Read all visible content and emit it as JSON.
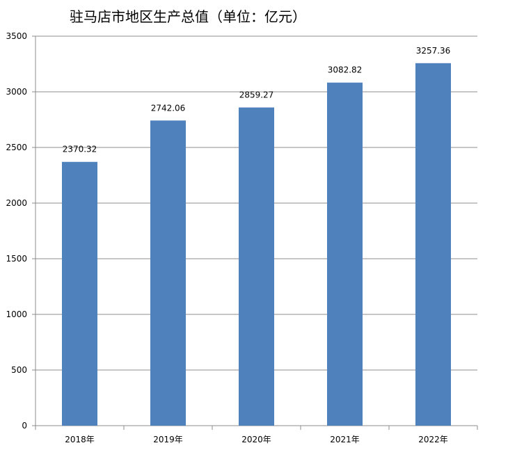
{
  "chart_data": {
    "type": "bar",
    "title": "驻马店市地区生产总值（单位：亿元）",
    "categories": [
      "2018年",
      "2019年",
      "2020年",
      "2021年",
      "2022年"
    ],
    "values": [
      2370.32,
      2742.06,
      2859.27,
      3082.82,
      3257.36
    ],
    "data_labels": [
      "2370.32",
      "2742.06",
      "2859.27",
      "3082.82",
      "3257.36"
    ],
    "y_ticks": [
      "0",
      "500",
      "1000",
      "1500",
      "2000",
      "2500",
      "3000",
      "3500"
    ],
    "ylim": [
      0,
      3500
    ],
    "grid": true,
    "legend": "none",
    "bar_color": "#4F81BD",
    "grid_color": "#8C8C8C"
  }
}
